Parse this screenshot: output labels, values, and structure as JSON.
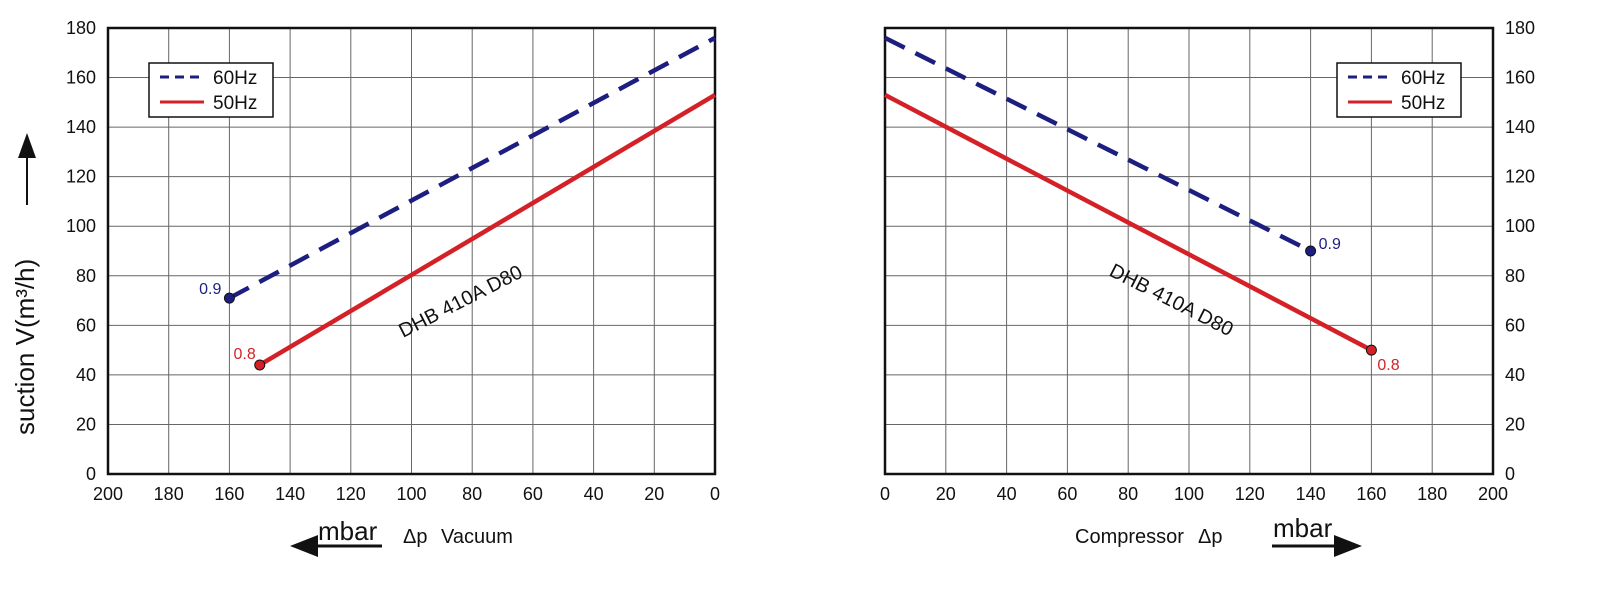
{
  "colors": {
    "hz60": "#1c1f80",
    "hz50": "#d42128",
    "grid": "#666666",
    "frame": "#111111"
  },
  "ylabel": "suction V(m³/h)",
  "legend": {
    "hz60": "60Hz",
    "hz50": "50Hz"
  },
  "left_panel": {
    "unit": "mbar",
    "caption_delta": "Δp",
    "caption": "Vacuum",
    "model": "DHB 410A D80"
  },
  "right_panel": {
    "unit": "mbar",
    "caption": "Compressor",
    "caption_delta": "Δp",
    "model": "DHB 410A D80"
  },
  "chart_data": [
    {
      "type": "line",
      "panel": "vacuum",
      "title": "",
      "xlabel": "mbar Δp Vacuum",
      "ylabel": "suction V(m³/h)",
      "xlim": [
        200,
        0
      ],
      "x_reversed": true,
      "ylim": [
        0,
        180
      ],
      "x_ticks": [
        200,
        180,
        160,
        140,
        120,
        100,
        80,
        60,
        40,
        20,
        0
      ],
      "y_ticks": [
        0,
        20,
        40,
        60,
        80,
        100,
        120,
        140,
        160,
        180
      ],
      "grid": true,
      "legend_position": "top-left",
      "series": [
        {
          "name": "60Hz",
          "key": "hz60",
          "style": "dashed",
          "x": [
            160,
            0
          ],
          "y": [
            71,
            176
          ],
          "end_label": "0.9"
        },
        {
          "name": "50Hz",
          "key": "hz50",
          "style": "solid",
          "x": [
            150,
            0
          ],
          "y": [
            44,
            153
          ],
          "end_label": "0.8"
        }
      ]
    },
    {
      "type": "line",
      "panel": "compressor",
      "title": "",
      "xlabel": "Compressor Δp mbar",
      "ylabel": "",
      "xlim": [
        0,
        200
      ],
      "x_reversed": false,
      "ylim": [
        0,
        180
      ],
      "x_ticks": [
        0,
        20,
        40,
        60,
        80,
        100,
        120,
        140,
        160,
        180,
        200
      ],
      "y_ticks": [
        0,
        20,
        40,
        60,
        80,
        100,
        120,
        140,
        160,
        180
      ],
      "grid": true,
      "legend_position": "top-right",
      "series": [
        {
          "name": "60Hz",
          "key": "hz60",
          "style": "dashed",
          "x": [
            0,
            140
          ],
          "y": [
            176,
            90
          ],
          "end_label": "0.9"
        },
        {
          "name": "50Hz",
          "key": "hz50",
          "style": "solid",
          "x": [
            0,
            160
          ],
          "y": [
            153,
            50
          ],
          "end_label": "0.8"
        }
      ]
    }
  ]
}
